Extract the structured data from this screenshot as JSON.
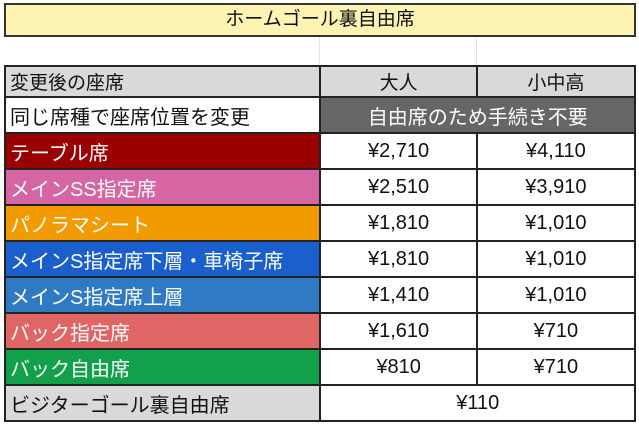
{
  "title": "ホームゴール裏自由席",
  "header": {
    "seat": "変更後の座席",
    "adult": "大人",
    "child": "小中高"
  },
  "same_seat": {
    "label": "同じ席種で座席位置を変更",
    "note": "自由席のため手続き不要"
  },
  "rows": [
    {
      "label": "テーブル席",
      "adult": "¥2,710",
      "child": "¥4,110",
      "color": "#9b0000"
    },
    {
      "label": "メインSS指定席",
      "adult": "¥2,510",
      "child": "¥3,910",
      "color": "#d565a3"
    },
    {
      "label": "パノラマシート",
      "adult": "¥1,810",
      "child": "¥1,010",
      "color": "#f29b00"
    },
    {
      "label": "メインS指定席下層・車椅子席",
      "adult": "¥1,810",
      "child": "¥1,010",
      "color": "#1a5fcc"
    },
    {
      "label": "メインS指定席上層",
      "adult": "¥1,410",
      "child": "¥1,010",
      "color": "#2f7ac2"
    },
    {
      "label": "バック指定席",
      "adult": "¥1,610",
      "child": "¥710",
      "color": "#e06666"
    },
    {
      "label": "バック自由席",
      "adult": "¥810",
      "child": "¥710",
      "color": "#12a04a"
    }
  ],
  "visitor": {
    "label": "ビジターゴール裏自由席",
    "price": "¥110"
  }
}
